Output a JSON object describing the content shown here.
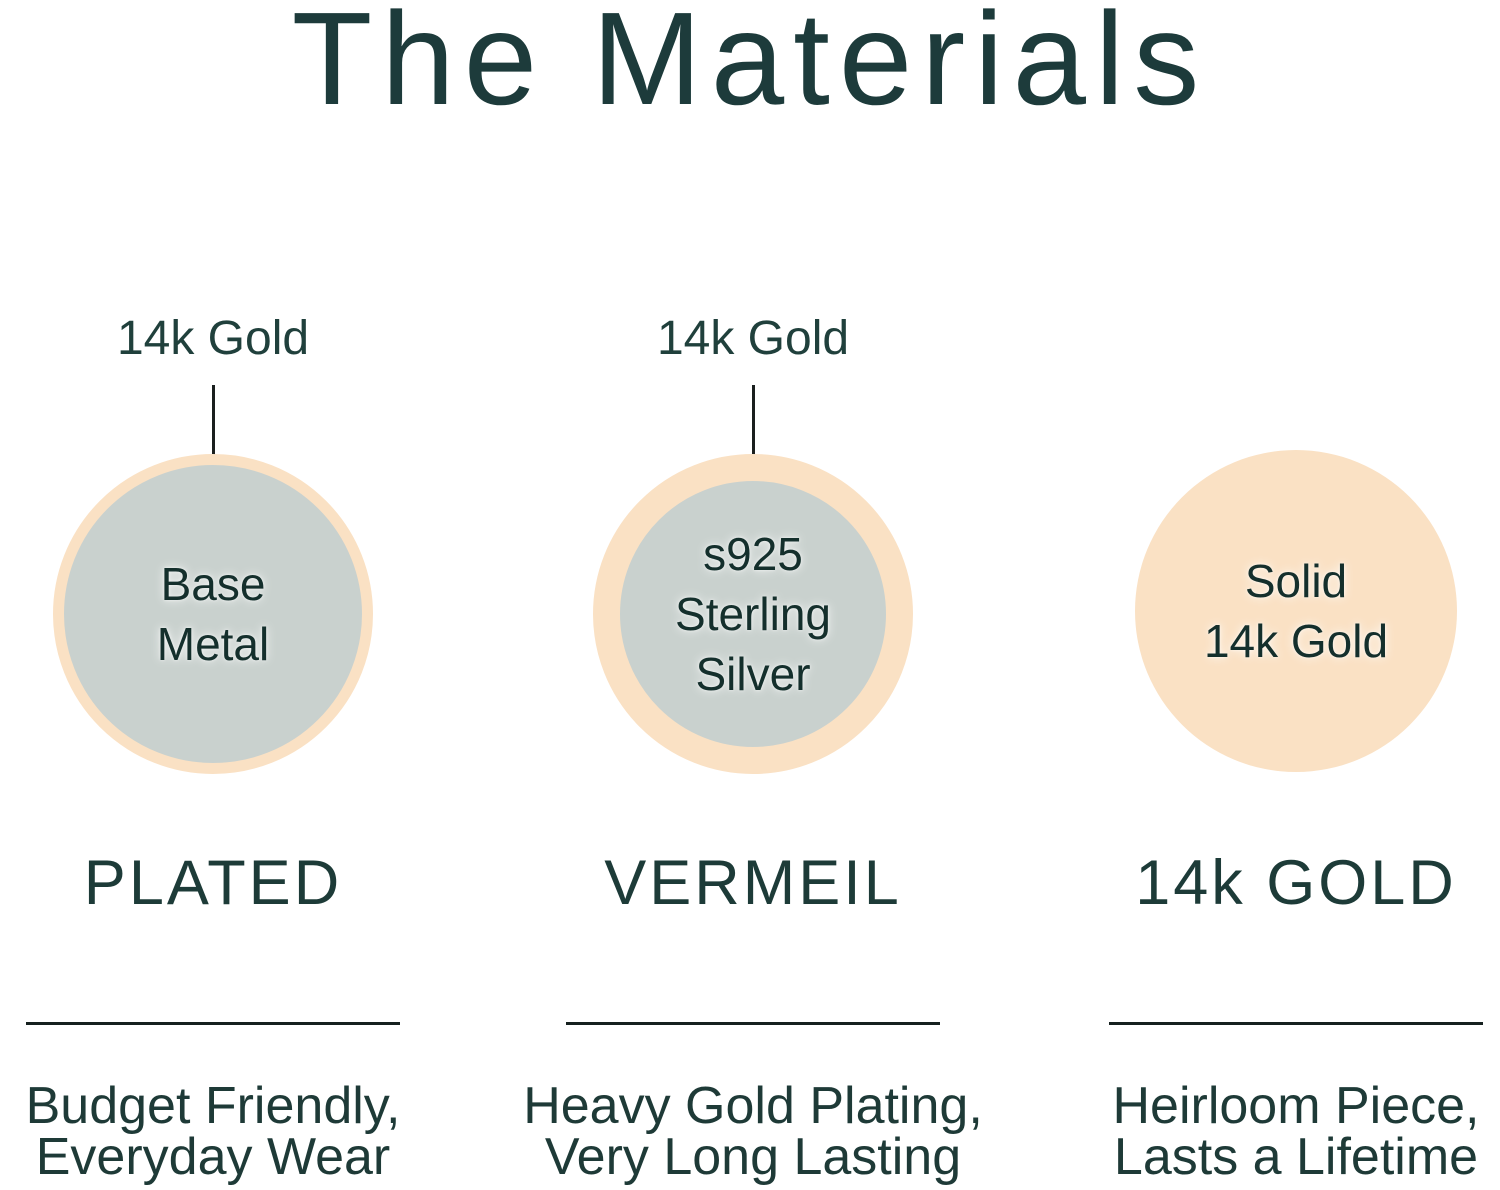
{
  "title": "The Materials",
  "colors": {
    "ink": "#1d3b3b",
    "peach": "#fae1c4",
    "gray": "#c9d1ce",
    "circle_text": "#142f2c"
  },
  "columns": [
    {
      "id": "plated",
      "callout": "14k Gold",
      "circle_lines": [
        "Base",
        "Metal"
      ],
      "heading": "PLATED",
      "caption_lines": [
        "Budget Friendly,",
        "Everyday Wear"
      ]
    },
    {
      "id": "vermeil",
      "callout": "14k Gold",
      "circle_lines": [
        "s925",
        "Sterling",
        "Silver"
      ],
      "heading": "VERMEIL",
      "caption_lines": [
        "Heavy Gold Plating,",
        "Very Long Lasting"
      ]
    },
    {
      "id": "gold",
      "callout": "",
      "circle_lines": [
        "Solid",
        "14k Gold"
      ],
      "heading": "14k GOLD",
      "caption_lines": [
        "Heirloom Piece,",
        "Lasts a Lifetime"
      ]
    }
  ]
}
